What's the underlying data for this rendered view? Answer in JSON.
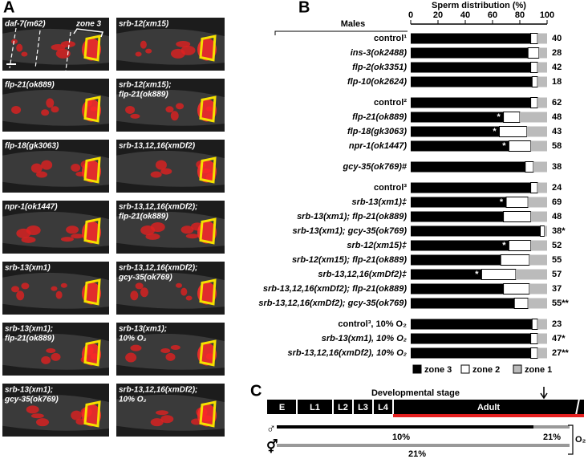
{
  "panel_labels": {
    "a": "A",
    "b": "B",
    "c": "C"
  },
  "panel_a": {
    "zone_label": "zone 3",
    "images": [
      {
        "caption": [
          "daf-7(m62)"
        ]
      },
      {
        "caption": [
          "flp-21(ok889)"
        ]
      },
      {
        "caption": [
          "flp-18(gk3063)"
        ]
      },
      {
        "caption": [
          "npr-1(ok1447)"
        ]
      },
      {
        "caption": [
          "srb-13(xm1)"
        ]
      },
      {
        "caption": [
          "srb-13(xm1);",
          "flp-21(ok889)"
        ]
      },
      {
        "caption": [
          "srb-13(xm1);",
          "gcy-35(ok769)"
        ]
      },
      {
        "caption": [
          "srb-12(xm15)"
        ]
      },
      {
        "caption": [
          "srb-12(xm15);",
          "flp-21(ok889)"
        ]
      },
      {
        "caption": [
          "srb-13,12,16(xmDf2)"
        ]
      },
      {
        "caption": [
          "srb-13,12,16(xmDf2);",
          "flp-21(ok889)"
        ]
      },
      {
        "caption": [
          "srb-13,12,16(xmDf2);",
          "gcy-35(ok769)"
        ]
      },
      {
        "caption": [
          "srb-13(xm1);",
          "10% O₂"
        ]
      },
      {
        "caption": [
          "srb-13,12,16(xmDf2);",
          "10% O₂"
        ]
      }
    ]
  },
  "chart_data": {
    "type": "bar",
    "orientation": "horizontal",
    "stacked": true,
    "title": "Sperm distribution (%)",
    "category_header": "Males",
    "categories": [
      "control¹",
      "ins-3(ok2488)",
      "flp-2(ok3351)",
      "flp-10(ok2624)",
      null,
      "control²",
      "flp-21(ok889)",
      "flp-18(gk3063)",
      "npr-1(ok1447)",
      null,
      "gcy-35(ok769)#",
      null,
      "control³",
      "srb-13(xm1)‡",
      "srb-13(xm1); flp-21(ok889)",
      "srb-13(xm1); gcy-35(ok769)",
      "srb-12(xm15)‡",
      "srb-12(xm15); flp-21(ok889)",
      "srb-13,12,16(xmDf2)‡",
      "srb-13,12,16(xmDf2); flp-21(ok889)",
      "srb-13,12,16(xmDf2); gcy-35(ok769)",
      null,
      "control³, 10% O₂",
      "srb-13(xm1), 10% O₂",
      "srb-13,12,16(xmDf2), 10% O₂"
    ],
    "series": [
      {
        "name": "zone 3",
        "color": "#000000",
        "values": [
          88,
          86,
          88,
          89,
          null,
          88,
          68,
          65,
          72,
          null,
          84,
          null,
          88,
          70,
          68,
          95,
          72,
          66,
          52,
          68,
          76,
          null,
          89,
          88,
          88
        ]
      },
      {
        "name": "zone 2",
        "color": "#ffffff",
        "values": [
          5,
          8,
          5,
          4,
          null,
          5,
          12,
          20,
          16,
          null,
          6,
          null,
          5,
          16,
          20,
          3,
          16,
          21,
          25,
          19,
          10,
          null,
          4,
          5,
          5
        ]
      },
      {
        "name": "zone 1",
        "color": "#bbbbbb",
        "values": [
          7,
          6,
          7,
          7,
          null,
          7,
          20,
          15,
          12,
          null,
          10,
          null,
          7,
          14,
          12,
          2,
          12,
          13,
          23,
          13,
          14,
          null,
          7,
          7,
          7
        ]
      }
    ],
    "n_labels": [
      "40",
      "28",
      "42",
      "18",
      null,
      "62",
      "48",
      "43",
      "58",
      null,
      "38",
      null,
      "24",
      "69",
      "48",
      "38*",
      "52",
      "55",
      "57",
      "37",
      "55**",
      null,
      "23",
      "47*",
      "27**"
    ],
    "bar_markers": [
      null,
      null,
      null,
      null,
      null,
      null,
      "*",
      "*",
      "*",
      null,
      null,
      null,
      null,
      "*",
      null,
      null,
      "*",
      null,
      "*",
      null,
      null,
      null,
      null,
      null,
      null
    ],
    "xlim": [
      0,
      100
    ],
    "xticks": [
      0,
      20,
      40,
      60,
      80,
      100
    ]
  },
  "panel_c": {
    "title": "Developmental stage",
    "stages": [
      "E",
      "L1",
      "L2",
      "L3",
      "L4",
      "Adult"
    ],
    "male_symbol": "♂",
    "herm_symbol": "⚥",
    "male_labels": [
      "10%",
      "21%"
    ],
    "herm_label": "21%",
    "oxygen_label": "O₂"
  }
}
